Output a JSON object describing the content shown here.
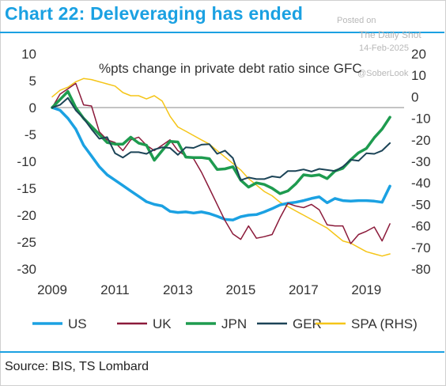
{
  "header": {
    "title": "Chart 22: Deleveraging has ended"
  },
  "watermark": {
    "posted": "Posted on",
    "site": "The Daily Shot",
    "date": "14-Feb-2025",
    "handle": "@SoberLook"
  },
  "footer": {
    "source": "Source: BIS, TS Lombard"
  },
  "chart_data": {
    "type": "line",
    "annotation": "%pts change in private debt ratio since GFC",
    "x_ticks": [
      "2009",
      "2011",
      "2013",
      "2015",
      "2017",
      "2019"
    ],
    "xlim": [
      2009,
      2020.2
    ],
    "ylim_left": [
      -30,
      10
    ],
    "yticks_left": [
      10,
      5,
      0,
      -5,
      -10,
      -15,
      -20,
      -25,
      -30
    ],
    "ylim_right": [
      -80,
      20
    ],
    "yticks_right": [
      20,
      10,
      0,
      -10,
      -20,
      -30,
      -40,
      -50,
      -60,
      -70,
      -80
    ],
    "zero_line": true,
    "grid": false,
    "legend_position": "bottom",
    "colors": {
      "US": "#1ba1e2",
      "UK": "#8b1a3a",
      "JPN": "#1e9b4f",
      "GER": "#1c4457",
      "SPA": "#f5c518"
    },
    "series": [
      {
        "name": "US",
        "axis": "left",
        "color": "#1ba1e2",
        "width": 3.5,
        "x": [
          2009.0,
          2009.25,
          2009.5,
          2009.75,
          2010.0,
          2010.25,
          2010.5,
          2010.75,
          2011.0,
          2011.25,
          2011.5,
          2011.75,
          2012.0,
          2012.25,
          2012.5,
          2012.75,
          2013.0,
          2013.25,
          2013.5,
          2013.75,
          2014.0,
          2014.25,
          2014.5,
          2014.75,
          2015.0,
          2015.25,
          2015.5,
          2015.75,
          2016.0,
          2016.25,
          2016.5,
          2016.75,
          2017.0,
          2017.25,
          2017.5,
          2017.75,
          2018.0,
          2018.25,
          2018.5,
          2018.75,
          2019.0,
          2019.25,
          2019.5,
          2019.75
        ],
        "values": [
          0,
          -0.5,
          -2,
          -4,
          -7,
          -9,
          -11,
          -12.5,
          -13.5,
          -14.5,
          -15.5,
          -16.5,
          -17.5,
          -18,
          -18.3,
          -19.3,
          -19.5,
          -19.4,
          -19.6,
          -19.4,
          -19.7,
          -20.2,
          -20.8,
          -20.9,
          -20.3,
          -20,
          -19.9,
          -19.4,
          -18.8,
          -18.1,
          -17.8,
          -17.6,
          -17.3,
          -16.9,
          -16.6,
          -17.7,
          -16.9,
          -17.3,
          -17.4,
          -17.3,
          -17.3,
          -17.4,
          -17.6,
          -14.6
        ]
      },
      {
        "name": "UK",
        "axis": "left",
        "color": "#8b1a3a",
        "width": 1.5,
        "x": [
          2009.0,
          2009.25,
          2009.5,
          2009.75,
          2010.0,
          2010.25,
          2010.5,
          2010.75,
          2011.0,
          2011.25,
          2011.5,
          2011.75,
          2012.0,
          2012.25,
          2012.5,
          2012.75,
          2013.0,
          2013.25,
          2013.5,
          2013.75,
          2014.0,
          2014.25,
          2014.5,
          2014.75,
          2015.0,
          2015.25,
          2015.5,
          2015.75,
          2016.0,
          2016.25,
          2016.5,
          2016.75,
          2017.0,
          2017.25,
          2017.5,
          2017.75,
          2018.0,
          2018.25,
          2018.5,
          2018.75,
          2019.0,
          2019.25,
          2019.5,
          2019.75
        ],
        "values": [
          0,
          2.5,
          3.5,
          4.5,
          0.5,
          0.3,
          -4.5,
          -6,
          -6.5,
          -8,
          -6,
          -5.5,
          -7,
          -8,
          -7,
          -6,
          -8,
          -9,
          -9.5,
          -12,
          -15,
          -18,
          -21,
          -23.5,
          -24.5,
          -22,
          -24.3,
          -24,
          -23.6,
          -20.5,
          -17.8,
          -18.3,
          -18.6,
          -18,
          -19,
          -21.8,
          -22,
          -22,
          -25.3,
          -23.6,
          -23,
          -22.2,
          -24.8,
          -21.6
        ]
      },
      {
        "name": "JPN",
        "axis": "left",
        "color": "#1e9b4f",
        "width": 3.5,
        "x": [
          2009.0,
          2009.25,
          2009.5,
          2009.75,
          2010.0,
          2010.25,
          2010.5,
          2010.75,
          2011.0,
          2011.25,
          2011.5,
          2011.75,
          2012.0,
          2012.25,
          2012.5,
          2012.75,
          2013.0,
          2013.25,
          2013.5,
          2013.75,
          2014.0,
          2014.25,
          2014.5,
          2014.75,
          2015.0,
          2015.25,
          2015.5,
          2015.75,
          2016.0,
          2016.25,
          2016.5,
          2016.75,
          2017.0,
          2017.25,
          2017.5,
          2017.75,
          2018.0,
          2018.25,
          2018.5,
          2018.75,
          2019.0,
          2019.25,
          2019.5,
          2019.75
        ],
        "values": [
          0,
          1.5,
          3,
          0,
          -2,
          -3.5,
          -5,
          -6.5,
          -6.8,
          -6.8,
          -5.5,
          -6.6,
          -7,
          -9.8,
          -8,
          -6.3,
          -6.4,
          -9.2,
          -9.3,
          -9.3,
          -9.5,
          -11.5,
          -11.4,
          -11,
          -13.5,
          -14.8,
          -14,
          -14.3,
          -15,
          -16,
          -15.5,
          -14.2,
          -12.5,
          -12.7,
          -12.5,
          -13.2,
          -11.8,
          -11.3,
          -9.7,
          -8.4,
          -7.6,
          -5.6,
          -4,
          -1.8
        ]
      },
      {
        "name": "GER",
        "axis": "left",
        "color": "#1c4457",
        "width": 2,
        "x": [
          2009.0,
          2009.25,
          2009.5,
          2009.75,
          2010.0,
          2010.25,
          2010.5,
          2010.75,
          2011.0,
          2011.25,
          2011.5,
          2011.75,
          2012.0,
          2012.25,
          2012.5,
          2012.75,
          2013.0,
          2013.25,
          2013.5,
          2013.75,
          2014.0,
          2014.25,
          2014.5,
          2014.75,
          2015.0,
          2015.25,
          2015.5,
          2015.75,
          2016.0,
          2016.25,
          2016.5,
          2016.75,
          2017.0,
          2017.25,
          2017.5,
          2017.75,
          2018.0,
          2018.25,
          2018.5,
          2018.75,
          2019.0,
          2019.25,
          2019.5,
          2019.75
        ],
        "values": [
          0,
          0.5,
          1.8,
          -0.5,
          -2,
          -4,
          -5.8,
          -5.5,
          -8.5,
          -9.3,
          -8.3,
          -8.3,
          -8.6,
          -7.8,
          -7.4,
          -7.5,
          -8.8,
          -7.4,
          -7.5,
          -6.9,
          -6.8,
          -8.6,
          -8,
          -9.4,
          -13.5,
          -13,
          -13.3,
          -13.3,
          -12.8,
          -13,
          -11.8,
          -11.8,
          -11.5,
          -11.9,
          -11.4,
          -11.6,
          -11.8,
          -11,
          -9.7,
          -9.9,
          -8.5,
          -8.6,
          -8,
          -6.6
        ]
      },
      {
        "name": "SPA (RHS)",
        "axis": "right",
        "color": "#f5c518",
        "width": 1.5,
        "x": [
          2009.0,
          2009.25,
          2009.5,
          2009.75,
          2010.0,
          2010.25,
          2010.5,
          2010.75,
          2011.0,
          2011.25,
          2011.5,
          2011.75,
          2012.0,
          2012.25,
          2012.5,
          2012.75,
          2013.0,
          2013.25,
          2013.5,
          2013.75,
          2014.0,
          2014.25,
          2014.5,
          2014.75,
          2015.0,
          2015.25,
          2015.5,
          2015.75,
          2016.0,
          2016.25,
          2016.5,
          2016.75,
          2017.0,
          2017.25,
          2017.5,
          2017.75,
          2018.0,
          2018.25,
          2018.5,
          2018.75,
          2019.0,
          2019.25,
          2019.5,
          2019.75
        ],
        "values": [
          0,
          3,
          4.5,
          7,
          8.5,
          8,
          7,
          6,
          5,
          2,
          0.5,
          0.5,
          -1,
          0.5,
          -2,
          -9,
          -14,
          -16,
          -18,
          -20,
          -22,
          -25,
          -28,
          -31,
          -34,
          -38,
          -41,
          -44,
          -46,
          -49,
          -51,
          -53,
          -55,
          -57,
          -59,
          -61,
          -64,
          -67,
          -68,
          -70,
          -72,
          -73,
          -74,
          -73
        ]
      }
    ]
  }
}
